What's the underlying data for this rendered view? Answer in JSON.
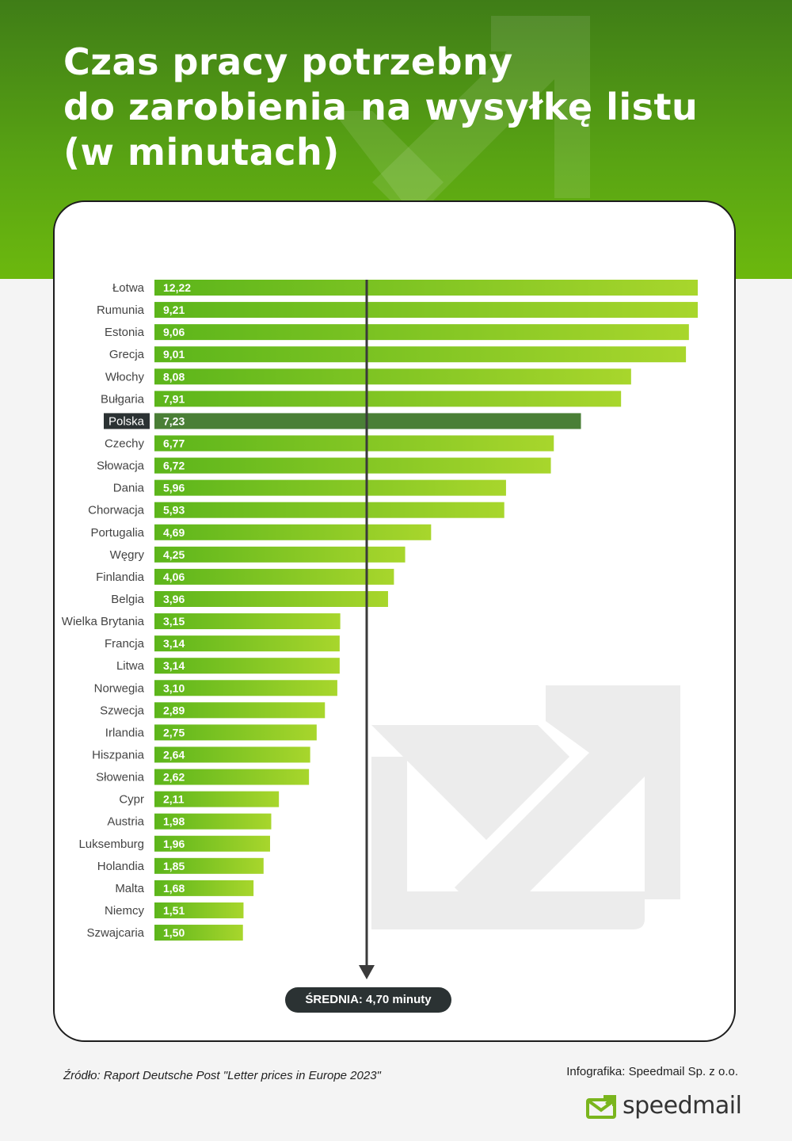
{
  "header": {
    "title_lines": [
      "Czas pracy potrzebny",
      "do zarobienia na wysyłkę listu",
      "(w minutach)"
    ]
  },
  "colors": {
    "header_green": "#5aa513",
    "bar_start": "#5cb51b",
    "bar_end": "#a8d62c",
    "highlight_bar": "#4a7f36",
    "highlight_label_bg": "#2b3233",
    "average_line": "#3a3a3a"
  },
  "chart_data": {
    "type": "bar",
    "orientation": "horizontal",
    "categories": [
      "Łotwa",
      "Rumunia",
      "Estonia",
      "Grecja",
      "Włochy",
      "Bułgaria",
      "Polska",
      "Czechy",
      "Słowacja",
      "Dania",
      "Chorwacja",
      "Portugalia",
      "Węgry",
      "Finlandia",
      "Belgia",
      "Wielka Brytania",
      "Francja",
      "Litwa",
      "Norwegia",
      "Szwecja",
      "Irlandia",
      "Hiszpania",
      "Słowenia",
      "Cypr",
      "Austria",
      "Luksemburg",
      "Holandia",
      "Malta",
      "Niemcy",
      "Szwajcaria"
    ],
    "values": [
      12.22,
      9.21,
      9.06,
      9.01,
      8.08,
      7.91,
      7.23,
      6.77,
      6.72,
      5.96,
      5.93,
      4.69,
      4.25,
      4.06,
      3.96,
      3.15,
      3.14,
      3.14,
      3.1,
      2.89,
      2.75,
      2.64,
      2.62,
      2.11,
      1.98,
      1.96,
      1.85,
      1.68,
      1.51,
      1.5
    ],
    "value_labels": [
      "12,22",
      "9,21",
      "9,06",
      "9,01",
      "8,08",
      "7,91",
      "7,23",
      "6,77",
      "6,72",
      "5,96",
      "5,93",
      "4,69",
      "4,25",
      "4,06",
      "3,96",
      "3,15",
      "3,14",
      "3,14",
      "3,10",
      "2,89",
      "2,75",
      "2,64",
      "2,62",
      "2,11",
      "1,98",
      "1,96",
      "1,85",
      "1,68",
      "1,51",
      "1,50"
    ],
    "highlight": "Polska",
    "average": 4.7,
    "average_label": "ŚREDNIA: 4,70 minuty"
  },
  "footer": {
    "source": "Źródło: Raport Deutsche Post \"Letter prices in Europe 2023\"",
    "credit": "Infografika: Speedmail Sp. z o.o.",
    "logo_text": "speedmail"
  }
}
